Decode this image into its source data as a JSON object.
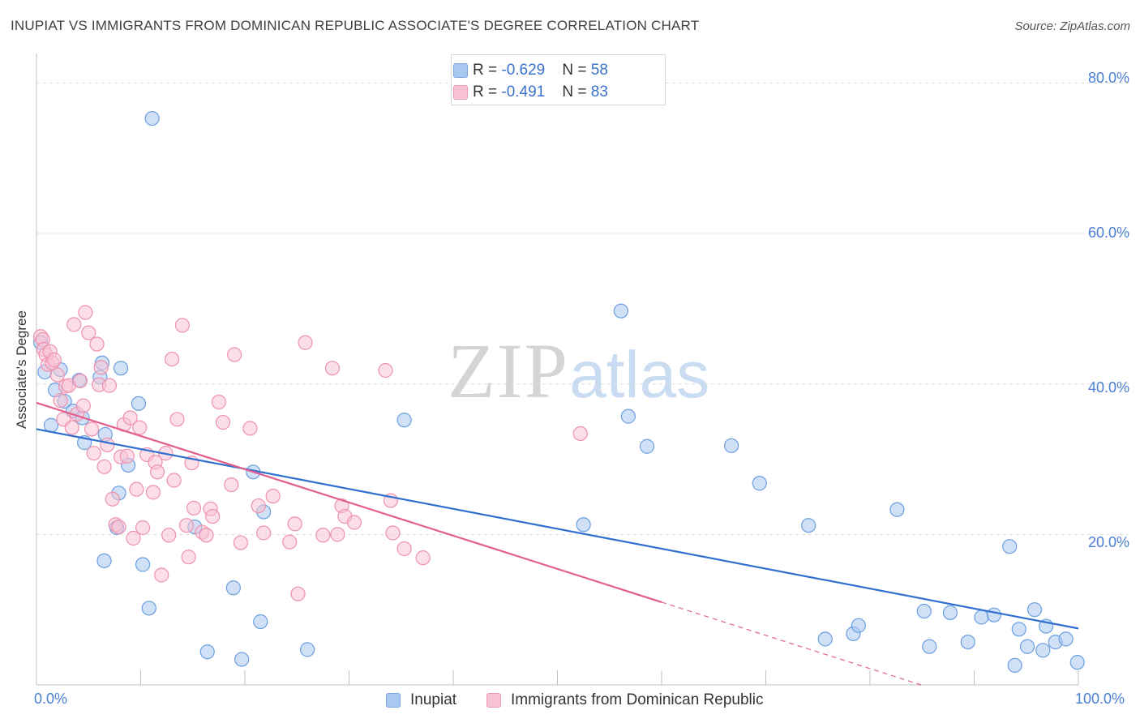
{
  "title": "INUPIAT VS IMMIGRANTS FROM DOMINICAN REPUBLIC ASSOCIATE'S DEGREE CORRELATION CHART",
  "source": "Source: ZipAtlas.com",
  "watermark": {
    "zip": "ZIP",
    "atlas": "atlas"
  },
  "stats": [
    {
      "r_label": "R = ",
      "r": "-0.629",
      "n_label": "N = ",
      "n": "58",
      "color": "#a9c8f0",
      "border": "#7aa5de"
    },
    {
      "r_label": "R = ",
      "r": "-0.491",
      "n_label": "N = ",
      "n": "83",
      "color": "#f7c3d3",
      "border": "#ee99b4"
    }
  ],
  "legend": [
    {
      "label": "Inupiat",
      "color": "#a9c8f0",
      "border": "#7aa5de"
    },
    {
      "label": "Immigrants from Dominican Republic",
      "color": "#f7c3d3",
      "border": "#ee99b4"
    }
  ],
  "chart_data": {
    "type": "scatter",
    "title": "INUPIAT VS IMMIGRANTS FROM DOMINICAN REPUBLIC ASSOCIATE'S DEGREE CORRELATION CHART",
    "xlabel": "",
    "ylabel": "Associate's Degree",
    "xlim": [
      0,
      100
    ],
    "ylim": [
      0,
      85
    ],
    "x_ticks": [
      "0.0%",
      "100.0%"
    ],
    "y_ticks": [
      "20.0%",
      "40.0%",
      "60.0%",
      "80.0%"
    ],
    "y_tick_values": [
      20,
      40,
      60,
      80
    ],
    "grid": true,
    "legend_position": "bottom",
    "series": [
      {
        "name": "Inupiat",
        "color": "#6a9ee0",
        "fill": "#a9c8f0",
        "trend": {
          "x": [
            0,
            100
          ],
          "y": [
            34.0,
            7.5
          ],
          "color": "#2f6fd0"
        },
        "points": [
          [
            11.1,
            75.3
          ],
          [
            56.1,
            49.7
          ],
          [
            0.8,
            41.6
          ],
          [
            1.4,
            34.5
          ],
          [
            1.8,
            39.2
          ],
          [
            2.3,
            41.9
          ],
          [
            2.7,
            37.7
          ],
          [
            3.5,
            36.4
          ],
          [
            4.1,
            40.5
          ],
          [
            4.4,
            35.5
          ],
          [
            4.6,
            32.2
          ],
          [
            6.1,
            40.9
          ],
          [
            6.3,
            42.8
          ],
          [
            6.5,
            16.5
          ],
          [
            6.6,
            33.3
          ],
          [
            7.7,
            20.9
          ],
          [
            7.9,
            25.5
          ],
          [
            8.1,
            42.1
          ],
          [
            8.8,
            29.2
          ],
          [
            9.8,
            37.4
          ],
          [
            10.2,
            16.0
          ],
          [
            10.8,
            10.2
          ],
          [
            15.2,
            21.0
          ],
          [
            16.4,
            4.4
          ],
          [
            18.9,
            12.9
          ],
          [
            19.7,
            3.4
          ],
          [
            20.8,
            28.3
          ],
          [
            21.5,
            8.4
          ],
          [
            21.8,
            23.0
          ],
          [
            26.0,
            4.7
          ],
          [
            35.3,
            35.2
          ],
          [
            52.5,
            21.3
          ],
          [
            56.8,
            35.7
          ],
          [
            58.6,
            31.7
          ],
          [
            66.7,
            31.8
          ],
          [
            69.4,
            26.8
          ],
          [
            74.1,
            21.2
          ],
          [
            75.7,
            6.1
          ],
          [
            78.4,
            6.8
          ],
          [
            78.9,
            7.9
          ],
          [
            82.6,
            23.3
          ],
          [
            85.2,
            9.8
          ],
          [
            85.7,
            5.1
          ],
          [
            87.7,
            9.6
          ],
          [
            89.4,
            5.7
          ],
          [
            90.7,
            9.0
          ],
          [
            91.9,
            9.3
          ],
          [
            93.4,
            18.4
          ],
          [
            93.9,
            2.6
          ],
          [
            94.3,
            7.4
          ],
          [
            95.1,
            5.1
          ],
          [
            95.8,
            10.0
          ],
          [
            96.6,
            4.6
          ],
          [
            96.9,
            7.8
          ],
          [
            97.8,
            5.7
          ],
          [
            98.8,
            6.1
          ],
          [
            99.9,
            3.0
          ],
          [
            0.4,
            45.5
          ]
        ]
      },
      {
        "name": "Immigrants from Dominican Republic",
        "color": "#ee91ae",
        "fill": "#f7c3d3",
        "trend": {
          "x": [
            0,
            60
          ],
          "y": [
            37.5,
            11.0
          ],
          "x_dashed_end": 100,
          "color": "#e25f8e"
        },
        "points": [
          [
            0.4,
            46.3
          ],
          [
            0.6,
            45.9
          ],
          [
            0.7,
            44.6
          ],
          [
            0.9,
            43.9
          ],
          [
            1.1,
            42.6
          ],
          [
            1.3,
            44.3
          ],
          [
            1.5,
            42.8
          ],
          [
            1.7,
            43.2
          ],
          [
            2.0,
            41.2
          ],
          [
            2.3,
            37.8
          ],
          [
            2.6,
            35.3
          ],
          [
            2.8,
            39.7
          ],
          [
            3.1,
            39.8
          ],
          [
            3.4,
            34.2
          ],
          [
            3.6,
            47.9
          ],
          [
            3.9,
            36.0
          ],
          [
            4.2,
            40.4
          ],
          [
            4.5,
            37.1
          ],
          [
            4.7,
            49.5
          ],
          [
            5.0,
            46.8
          ],
          [
            5.3,
            34.0
          ],
          [
            5.5,
            30.8
          ],
          [
            5.8,
            45.3
          ],
          [
            6.0,
            39.9
          ],
          [
            6.2,
            42.2
          ],
          [
            6.5,
            29.0
          ],
          [
            6.8,
            31.9
          ],
          [
            7.0,
            39.8
          ],
          [
            7.3,
            24.7
          ],
          [
            7.6,
            21.3
          ],
          [
            7.9,
            21.0
          ],
          [
            8.1,
            30.3
          ],
          [
            8.4,
            34.6
          ],
          [
            8.7,
            30.4
          ],
          [
            9.0,
            35.5
          ],
          [
            9.3,
            19.5
          ],
          [
            9.6,
            26.0
          ],
          [
            9.9,
            34.2
          ],
          [
            10.2,
            20.9
          ],
          [
            10.6,
            30.6
          ],
          [
            11.2,
            25.6
          ],
          [
            11.4,
            29.6
          ],
          [
            11.6,
            28.3
          ],
          [
            12.0,
            14.6
          ],
          [
            12.4,
            30.8
          ],
          [
            12.7,
            19.9
          ],
          [
            13.0,
            43.3
          ],
          [
            13.2,
            27.2
          ],
          [
            13.5,
            35.3
          ],
          [
            14.0,
            47.8
          ],
          [
            14.4,
            21.2
          ],
          [
            14.6,
            17.0
          ],
          [
            14.9,
            29.5
          ],
          [
            15.1,
            23.5
          ],
          [
            15.9,
            20.3
          ],
          [
            16.3,
            19.9
          ],
          [
            16.7,
            23.4
          ],
          [
            16.9,
            22.4
          ],
          [
            17.5,
            37.6
          ],
          [
            17.9,
            34.9
          ],
          [
            18.7,
            26.6
          ],
          [
            19.0,
            43.9
          ],
          [
            19.6,
            18.9
          ],
          [
            20.5,
            34.1
          ],
          [
            21.3,
            23.8
          ],
          [
            21.8,
            20.2
          ],
          [
            22.7,
            25.1
          ],
          [
            24.3,
            19.0
          ],
          [
            24.8,
            21.4
          ],
          [
            25.1,
            12.1
          ],
          [
            25.8,
            45.5
          ],
          [
            27.5,
            19.9
          ],
          [
            28.4,
            42.1
          ],
          [
            28.9,
            20.0
          ],
          [
            29.3,
            23.8
          ],
          [
            29.6,
            22.4
          ],
          [
            30.5,
            21.6
          ],
          [
            33.5,
            41.8
          ],
          [
            34.0,
            24.5
          ],
          [
            34.2,
            20.2
          ],
          [
            35.3,
            18.1
          ],
          [
            37.1,
            16.9
          ],
          [
            52.2,
            33.4
          ]
        ]
      }
    ]
  }
}
